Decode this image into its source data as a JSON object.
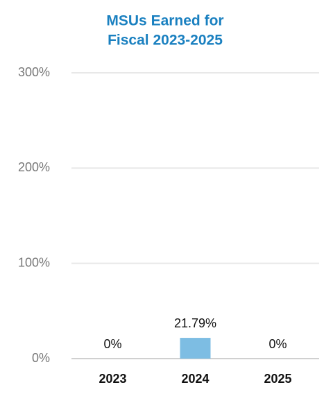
{
  "chart_data": {
    "type": "bar",
    "title": [
      "MSUs Earned for",
      "Fiscal 2023-2025"
    ],
    "categories": [
      "2023",
      "2024",
      "2025"
    ],
    "values": [
      0,
      21.79,
      0
    ],
    "value_labels": [
      "0%",
      "21.79%",
      "0%"
    ],
    "color": "#7dbde3",
    "ylim": [
      0,
      300
    ],
    "yticks": [
      {
        "value": 0,
        "label": "0%"
      },
      {
        "value": 100,
        "label": "100%"
      },
      {
        "value": 200,
        "label": "200%"
      },
      {
        "value": 300,
        "label": "300%"
      }
    ],
    "grid": true
  }
}
